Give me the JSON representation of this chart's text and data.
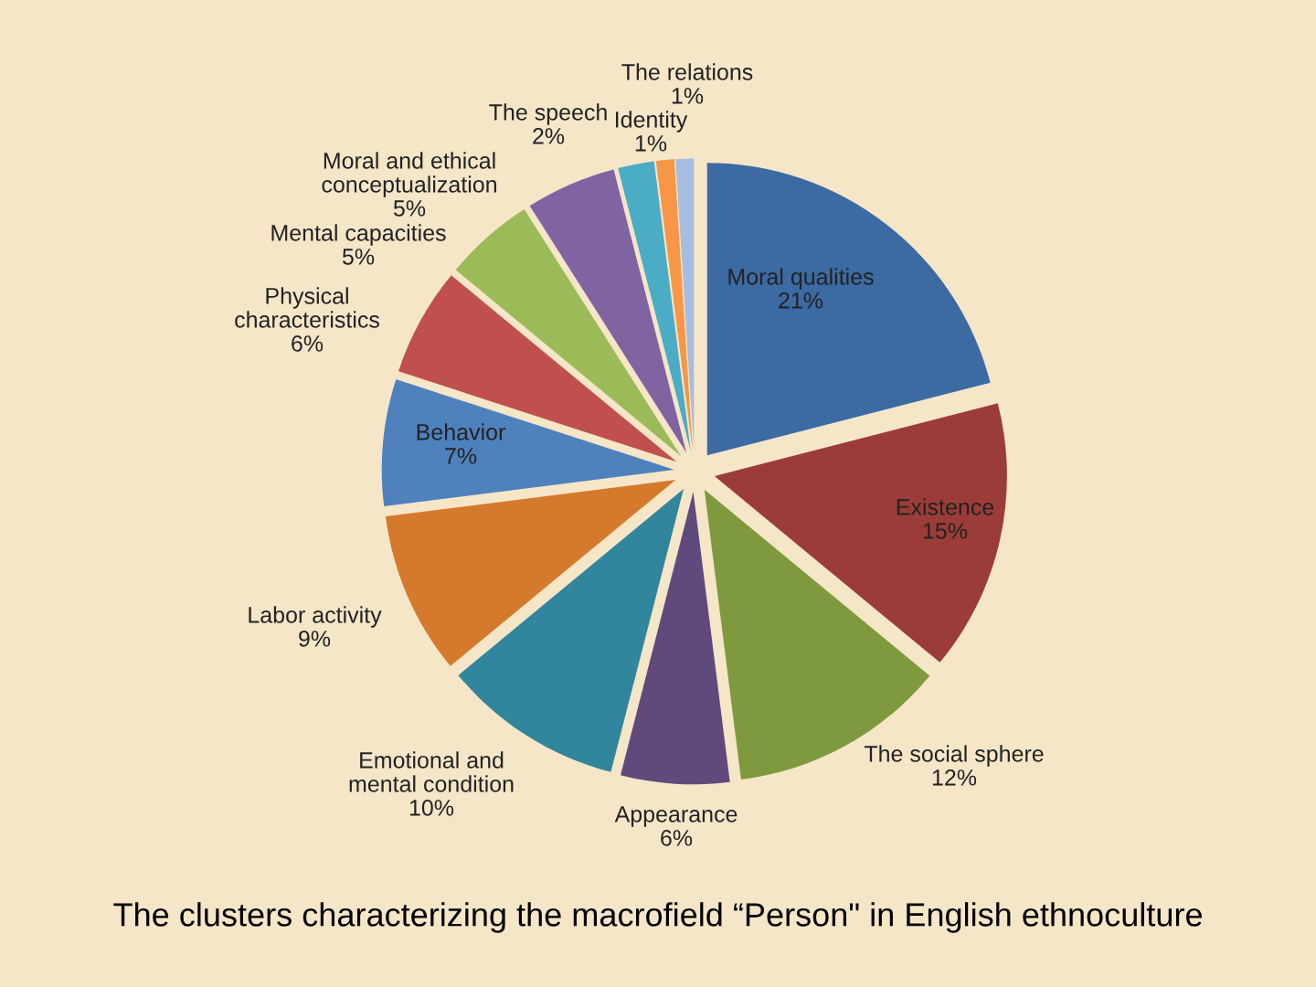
{
  "chart_data": {
    "type": "pie",
    "title": "The clusters characterizing the macrofield “Person\" in English ethnoculture",
    "categories": [
      "Moral qualities",
      "Existence",
      "The social sphere",
      "Appearance",
      "Emotional and\nmental condition",
      "Labor activity",
      "Behavior",
      "Physical\ncharacteristics",
      "Mental capacities",
      "Moral and ethical\nconceptualization",
      "The speech",
      "Identity",
      "The relations"
    ],
    "values": [
      21,
      15,
      12,
      6,
      10,
      9,
      7,
      6,
      5,
      5,
      2,
      1,
      1
    ],
    "colors": [
      "#3c6aa3",
      "#9c3c3a",
      "#7f9a3e",
      "#604a7b",
      "#31859c",
      "#d57a2c",
      "#4f81bd",
      "#c0504d",
      "#9bbb59",
      "#8064a2",
      "#4bacc6",
      "#f79646",
      "#a6bde0"
    ],
    "value_labels": [
      "21%",
      "15%",
      "12%",
      "6%",
      "10%",
      "9%",
      "7%",
      "6%",
      "5%",
      "5%",
      "2%",
      "1%",
      "1%"
    ]
  }
}
